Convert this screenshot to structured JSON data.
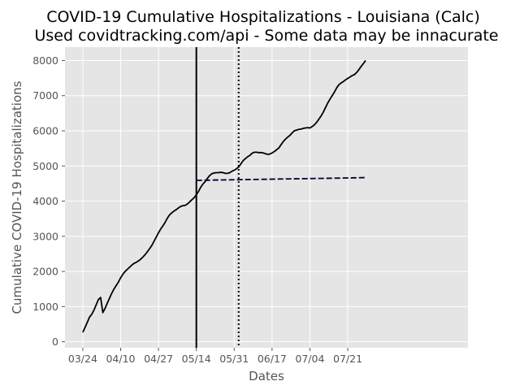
{
  "chart_data": {
    "type": "line",
    "title": "COVID-19 Cumulative Hospitalizations - Louisiana (Calc)",
    "subtitle": "Used covidtracking.com/api - Some data may be innacurate",
    "xlabel": "Dates",
    "ylabel": "Cumulative COVID-19 Hospitalizations",
    "x_tick_labels": [
      "03/24",
      "04/10",
      "04/27",
      "05/14",
      "05/31",
      "06/17",
      "07/04",
      "07/21"
    ],
    "y_tick_labels": [
      "0",
      "1000",
      "2000",
      "3000",
      "4000",
      "5000",
      "6000",
      "7000",
      "8000"
    ],
    "ylim": [
      -170,
      8380
    ],
    "xlim_day_index": [
      -8,
      173
    ],
    "date_ticks_day_index": [
      0,
      17,
      34,
      51,
      68,
      85,
      102,
      119
    ],
    "grid": true,
    "style": "ggplot",
    "colors": {
      "background": "#e5e5e5",
      "grid": "#ffffff",
      "line": "#000000",
      "projection": "#000033",
      "text": "#555555"
    },
    "vertical_markers": [
      {
        "day_index": 51,
        "style": "solid"
      },
      {
        "day_index": 70,
        "style": "dotted"
      }
    ],
    "series": [
      {
        "style": "solid",
        "points": [
          [
            0,
            270
          ],
          [
            2,
            550
          ],
          [
            3,
            700
          ],
          [
            4,
            780
          ],
          [
            5,
            900
          ],
          [
            6,
            1050
          ],
          [
            7,
            1200
          ],
          [
            8,
            1260
          ],
          [
            9,
            830
          ],
          [
            10,
            950
          ],
          [
            11,
            1100
          ],
          [
            12,
            1240
          ],
          [
            13,
            1380
          ],
          [
            14,
            1500
          ],
          [
            15,
            1600
          ],
          [
            16,
            1700
          ],
          [
            17,
            1820
          ],
          [
            18,
            1920
          ],
          [
            19,
            2000
          ],
          [
            20,
            2060
          ],
          [
            21,
            2120
          ],
          [
            22,
            2180
          ],
          [
            23,
            2230
          ],
          [
            24,
            2260
          ],
          [
            25,
            2300
          ],
          [
            26,
            2350
          ],
          [
            27,
            2410
          ],
          [
            28,
            2480
          ],
          [
            29,
            2560
          ],
          [
            30,
            2650
          ],
          [
            31,
            2740
          ],
          [
            32,
            2860
          ],
          [
            33,
            2980
          ],
          [
            34,
            3100
          ],
          [
            35,
            3210
          ],
          [
            36,
            3300
          ],
          [
            37,
            3400
          ],
          [
            38,
            3520
          ],
          [
            39,
            3610
          ],
          [
            40,
            3670
          ],
          [
            41,
            3720
          ],
          [
            42,
            3760
          ],
          [
            43,
            3810
          ],
          [
            44,
            3850
          ],
          [
            45,
            3870
          ],
          [
            46,
            3880
          ],
          [
            47,
            3920
          ],
          [
            48,
            3980
          ],
          [
            49,
            4040
          ],
          [
            50,
            4100
          ],
          [
            51,
            4180
          ],
          [
            52,
            4280
          ],
          [
            53,
            4400
          ],
          [
            54,
            4490
          ],
          [
            55,
            4560
          ],
          [
            56,
            4650
          ],
          [
            57,
            4730
          ],
          [
            58,
            4780
          ],
          [
            59,
            4800
          ],
          [
            60,
            4810
          ],
          [
            61,
            4810
          ],
          [
            62,
            4820
          ],
          [
            63,
            4810
          ],
          [
            64,
            4790
          ],
          [
            65,
            4790
          ],
          [
            66,
            4810
          ],
          [
            67,
            4850
          ],
          [
            68,
            4880
          ],
          [
            69,
            4920
          ],
          [
            70,
            4970
          ],
          [
            71,
            5060
          ],
          [
            72,
            5150
          ],
          [
            73,
            5210
          ],
          [
            74,
            5260
          ],
          [
            75,
            5300
          ],
          [
            76,
            5360
          ],
          [
            77,
            5390
          ],
          [
            78,
            5390
          ],
          [
            79,
            5380
          ],
          [
            80,
            5380
          ],
          [
            81,
            5370
          ],
          [
            82,
            5350
          ],
          [
            83,
            5330
          ],
          [
            84,
            5340
          ],
          [
            85,
            5370
          ],
          [
            86,
            5410
          ],
          [
            87,
            5460
          ],
          [
            88,
            5510
          ],
          [
            89,
            5600
          ],
          [
            90,
            5690
          ],
          [
            91,
            5760
          ],
          [
            92,
            5820
          ],
          [
            93,
            5870
          ],
          [
            94,
            5940
          ],
          [
            95,
            6000
          ],
          [
            96,
            6020
          ],
          [
            97,
            6040
          ],
          [
            98,
            6050
          ],
          [
            99,
            6070
          ],
          [
            100,
            6080
          ],
          [
            101,
            6090
          ],
          [
            102,
            6080
          ],
          [
            103,
            6120
          ],
          [
            104,
            6170
          ],
          [
            105,
            6240
          ],
          [
            106,
            6330
          ],
          [
            107,
            6420
          ],
          [
            108,
            6530
          ],
          [
            109,
            6660
          ],
          [
            110,
            6790
          ],
          [
            111,
            6900
          ],
          [
            112,
            7000
          ],
          [
            113,
            7100
          ],
          [
            114,
            7220
          ],
          [
            115,
            7310
          ],
          [
            116,
            7360
          ],
          [
            117,
            7400
          ],
          [
            118,
            7450
          ],
          [
            119,
            7490
          ],
          [
            120,
            7530
          ],
          [
            121,
            7570
          ],
          [
            122,
            7600
          ],
          [
            123,
            7660
          ],
          [
            124,
            7740
          ],
          [
            125,
            7830
          ],
          [
            126,
            7910
          ],
          [
            127,
            8000
          ]
        ]
      },
      {
        "style": "dashed",
        "points": [
          [
            51,
            4590
          ],
          [
            60,
            4600
          ],
          [
            70,
            4610
          ],
          [
            80,
            4620
          ],
          [
            90,
            4630
          ],
          [
            100,
            4640
          ],
          [
            110,
            4650
          ],
          [
            120,
            4660
          ],
          [
            127,
            4670
          ]
        ]
      }
    ]
  }
}
